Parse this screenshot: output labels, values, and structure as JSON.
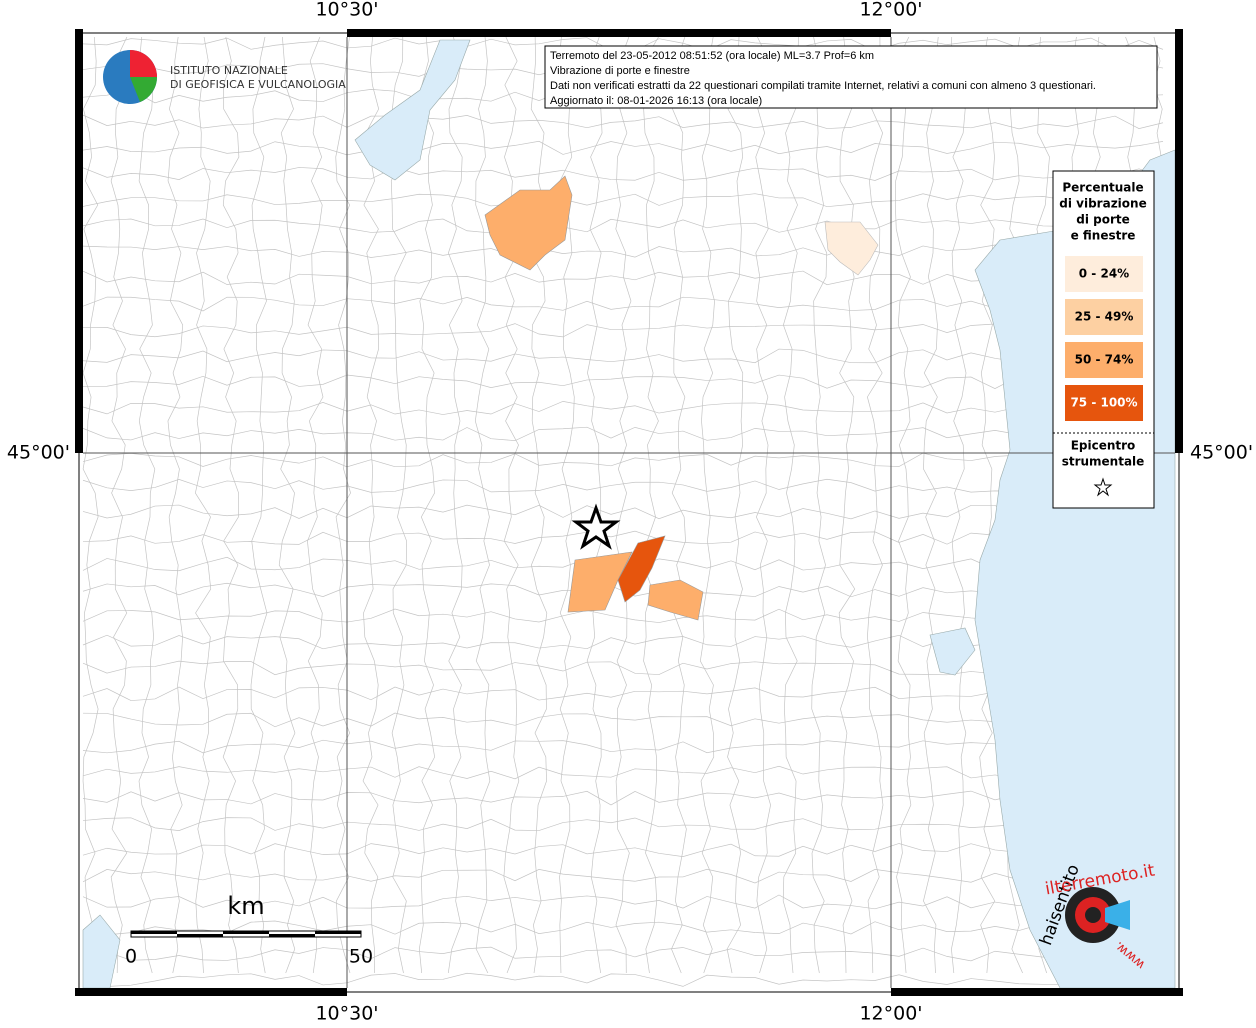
{
  "graticule": {
    "lon": [
      "10°30'",
      "12°00'"
    ],
    "lat": [
      "45°00'"
    ]
  },
  "logo": {
    "line1": "ISTITUTO NAZIONALE",
    "line2": "DI GEOFISICA E VULCANOLOGIA"
  },
  "info": [
    "Terremoto del 23-05-2012 08:51:52 (ora locale) ML=3.7 Prof=6 km",
    "Vibrazione di porte e finestre",
    "Dati non verificati estratti da 22 questionari compilati tramite Internet, relativi a comuni con almeno 3 questionari.",
    "Aggiornato il: 08-01-2026 16:13 (ora locale)"
  ],
  "legend": {
    "title": [
      "Percentuale",
      "di vibrazione",
      "di porte",
      "e finestre"
    ],
    "classes": [
      {
        "label": "0 - 24%",
        "color": "#feeddc"
      },
      {
        "label": "25 - 49%",
        "color": "#fdd0a2"
      },
      {
        "label": "50 - 74%",
        "color": "#fdae6b"
      },
      {
        "label": "75 - 100%",
        "color": "#e6550d"
      }
    ],
    "epicenter": [
      "Epicentro",
      "strumentale"
    ]
  },
  "scale": {
    "unit": "km",
    "start": "0",
    "end": "50"
  },
  "site_logo": {
    "a": "haisentito",
    "b": "ilterremoto.it",
    "c": "www."
  }
}
